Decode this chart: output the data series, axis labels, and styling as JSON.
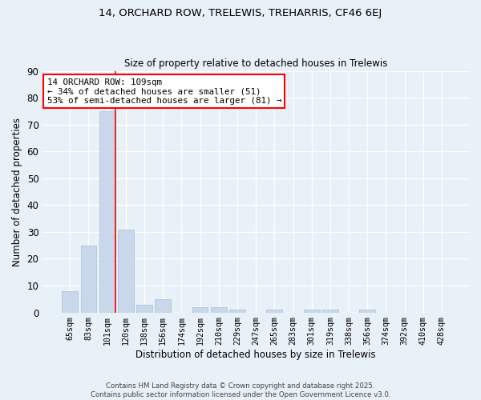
{
  "title1": "14, ORCHARD ROW, TRELEWIS, TREHARRIS, CF46 6EJ",
  "title2": "Size of property relative to detached houses in Trelewis",
  "xlabel": "Distribution of detached houses by size in Trelewis",
  "ylabel": "Number of detached properties",
  "categories": [
    "65sqm",
    "83sqm",
    "101sqm",
    "120sqm",
    "138sqm",
    "156sqm",
    "174sqm",
    "192sqm",
    "210sqm",
    "229sqm",
    "247sqm",
    "265sqm",
    "283sqm",
    "301sqm",
    "319sqm",
    "338sqm",
    "356sqm",
    "374sqm",
    "392sqm",
    "410sqm",
    "428sqm"
  ],
  "values": [
    8,
    25,
    75,
    31,
    3,
    5,
    0,
    2,
    2,
    1,
    0,
    1,
    0,
    1,
    1,
    0,
    1,
    0,
    0,
    0,
    0
  ],
  "bar_color": "#c8d8ea",
  "bar_edge_color": "#aabfd0",
  "background_color": "#e8f0f8",
  "grid_color": "#ffffff",
  "property_line_bar_index": 2,
  "annotation_line1": "14 ORCHARD ROW: 109sqm",
  "annotation_line2": "← 34% of detached houses are smaller (51)",
  "annotation_line3": "53% of semi-detached houses are larger (81) →",
  "annotation_box_color": "white",
  "annotation_box_edge": "red",
  "property_line_color": "red",
  "ylim": [
    0,
    90
  ],
  "yticks": [
    0,
    10,
    20,
    30,
    40,
    50,
    60,
    70,
    80,
    90
  ],
  "footer1": "Contains HM Land Registry data © Crown copyright and database right 2025.",
  "footer2": "Contains public sector information licensed under the Open Government Licence v3.0."
}
